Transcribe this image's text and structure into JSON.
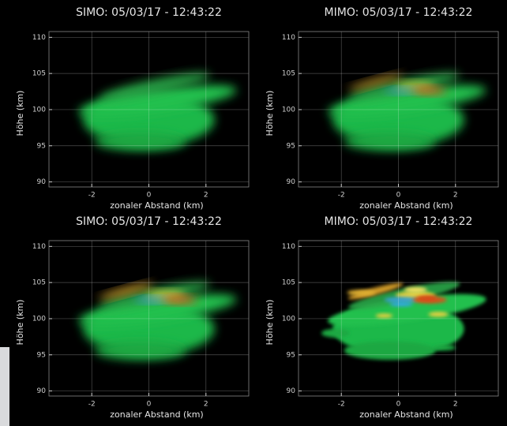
{
  "chart_data": [
    {
      "type": "image",
      "title": "SIMO: 05/03/17 - 12:43:22",
      "xlabel": "zonaler Abstand (km)",
      "ylabel": "Höhe (km)",
      "xlim": [
        -3.5,
        3.5
      ],
      "ylim": [
        89.3,
        110.8
      ],
      "xticks": [
        -2,
        0,
        2
      ],
      "yticks": [
        90,
        95,
        100,
        105,
        110
      ],
      "grid": true
    },
    {
      "type": "image",
      "title": "MIMO: 05/03/17 - 12:43:22",
      "xlabel": "zonaler Abstand (km)",
      "ylabel": "Höhe (km)",
      "xlim": [
        -3.5,
        3.5
      ],
      "ylim": [
        89.3,
        110.8
      ],
      "xticks": [
        -2,
        0,
        2
      ],
      "yticks": [
        90,
        95,
        100,
        105,
        110
      ],
      "grid": true
    },
    {
      "type": "image",
      "title": "SIMO: 05/03/17 - 12:43:22",
      "xlabel": "zonaler Abstand (km)",
      "ylabel": "Höhe (km)",
      "xlim": [
        -3.5,
        3.5
      ],
      "ylim": [
        89.3,
        110.8
      ],
      "xticks": [
        -2,
        0,
        2
      ],
      "yticks": [
        90,
        95,
        100,
        105,
        110
      ],
      "grid": true
    },
    {
      "type": "image",
      "title": "MIMO: 05/03/17 - 12:43:22",
      "xlabel": "zonaler Abstand (km)",
      "ylabel": "Höhe (km)",
      "xlim": [
        -3.5,
        3.5
      ],
      "ylim": [
        89.3,
        110.8
      ],
      "xticks": [
        -2,
        0,
        2
      ],
      "yticks": [
        90,
        95,
        100,
        105,
        110
      ],
      "grid": true
    }
  ]
}
